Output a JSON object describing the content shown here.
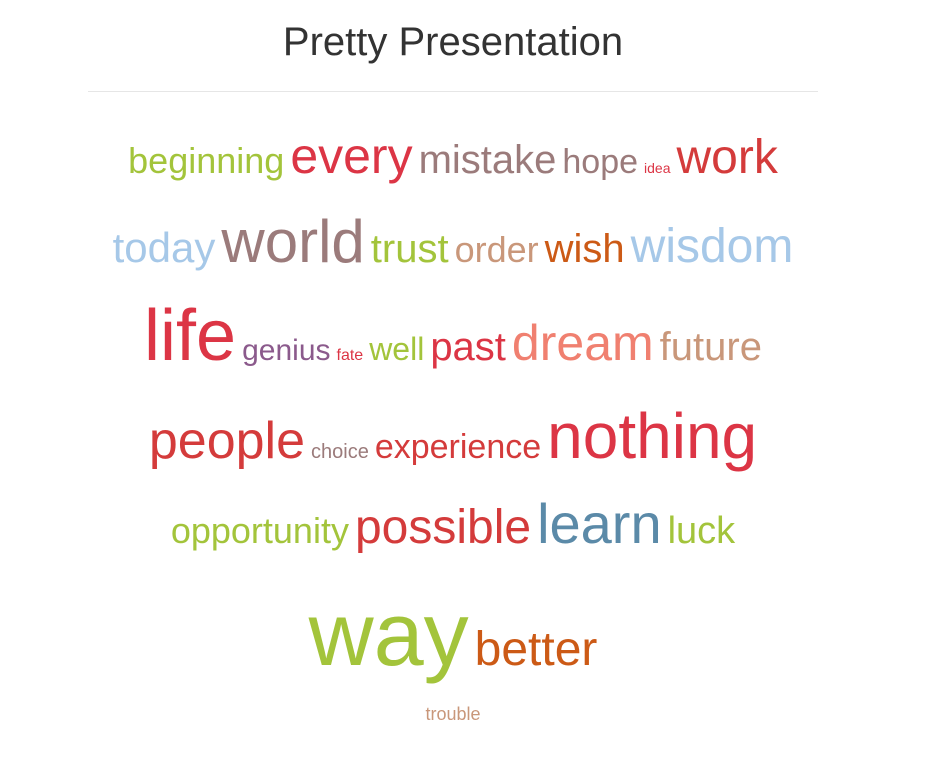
{
  "page": {
    "title": "Pretty Presentation"
  },
  "word_cloud": {
    "rows": [
      [
        {
          "text": "beginning",
          "color": "#a3c43b",
          "size": 36
        },
        {
          "text": "every",
          "color": "#dc3545",
          "size": 50
        },
        {
          "text": "mistake",
          "color": "#9b7b7b",
          "size": 40
        },
        {
          "text": "hope",
          "color": "#9b7b7b",
          "size": 34
        },
        {
          "text": "idea",
          "color": "#dc3545",
          "size": 14
        },
        {
          "text": "work",
          "color": "#d43b3b",
          "size": 48
        }
      ],
      [
        {
          "text": "today",
          "color": "#a6c8e8",
          "size": 42
        },
        {
          "text": "world",
          "color": "#9b7b7b",
          "size": 60
        },
        {
          "text": "trust",
          "color": "#a3c43b",
          "size": 40
        },
        {
          "text": "order",
          "color": "#c9977a",
          "size": 36
        },
        {
          "text": "wish",
          "color": "#cc5a16",
          "size": 40
        },
        {
          "text": "wisdom",
          "color": "#a6c8e8",
          "size": 48
        }
      ],
      [
        {
          "text": "life",
          "color": "#dc3545",
          "size": 72
        },
        {
          "text": "genius",
          "color": "#8b5a8c",
          "size": 30
        },
        {
          "text": "fate",
          "color": "#dc3545",
          "size": 16
        },
        {
          "text": "well",
          "color": "#a3c43b",
          "size": 32
        },
        {
          "text": "past",
          "color": "#dc3545",
          "size": 40
        },
        {
          "text": "dream",
          "color": "#f08070",
          "size": 50
        },
        {
          "text": "future",
          "color": "#c9977a",
          "size": 40
        }
      ],
      [
        {
          "text": "people",
          "color": "#d43b3b",
          "size": 52
        },
        {
          "text": "choice",
          "color": "#9b7b7b",
          "size": 20
        },
        {
          "text": "experience",
          "color": "#d43b3b",
          "size": 34
        },
        {
          "text": "nothing",
          "color": "#dc3545",
          "size": 64
        }
      ],
      [
        {
          "text": "opportunity",
          "color": "#a3c43b",
          "size": 36
        },
        {
          "text": "possible",
          "color": "#d43b3b",
          "size": 48
        },
        {
          "text": "learn",
          "color": "#5b8aa8",
          "size": 56
        },
        {
          "text": "luck",
          "color": "#a3c43b",
          "size": 38
        }
      ],
      [
        {
          "text": "way",
          "color": "#a3c43b",
          "size": 90
        },
        {
          "text": "better",
          "color": "#cc5a16",
          "size": 48
        }
      ],
      [
        {
          "text": "trouble",
          "color": "#c9977a",
          "size": 18
        }
      ]
    ]
  }
}
